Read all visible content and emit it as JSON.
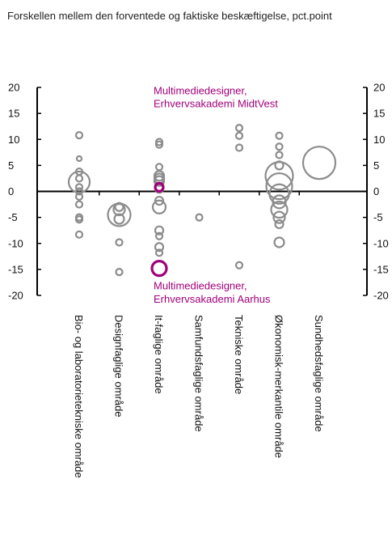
{
  "chart_data": {
    "type": "scatter",
    "title": "Forskellen mellem den forventede og faktiske beskæftigelse, pct.point",
    "ylim": [
      -20,
      20
    ],
    "yticks": [
      20,
      15,
      10,
      5,
      0,
      -5,
      -10,
      -15,
      -20
    ],
    "ytick_labels": [
      "20",
      "15",
      "10",
      "5",
      "0",
      "-5",
      "-10",
      "-15",
      "-20"
    ],
    "categories": [
      "Bio- og laboratorietekniske område",
      "Designfaglige område",
      "It-faglige område",
      "Samfundsfaglige område",
      "Tekniske område",
      "Økonomisk-merkantile område",
      "Sundhedsfaglige område"
    ],
    "grid": false,
    "colors": {
      "default": "#8c8c8c",
      "highlight": "#a0007a"
    },
    "points": [
      {
        "cat": 0,
        "y": 10.8,
        "size": 4
      },
      {
        "cat": 0,
        "y": 6.3,
        "size": 3
      },
      {
        "cat": 0,
        "y": 3.8,
        "size": 4
      },
      {
        "cat": 0,
        "y": 2.5,
        "size": 4
      },
      {
        "cat": 0,
        "y": 1.8,
        "size": 13
      },
      {
        "cat": 0,
        "y": 0.8,
        "size": 4
      },
      {
        "cat": 0,
        "y": 0.0,
        "size": 4
      },
      {
        "cat": 0,
        "y": -1.0,
        "size": 4
      },
      {
        "cat": 0,
        "y": -2.5,
        "size": 4
      },
      {
        "cat": 0,
        "y": -5.0,
        "size": 4
      },
      {
        "cat": 0,
        "y": -5.4,
        "size": 4
      },
      {
        "cat": 0,
        "y": -8.3,
        "size": 4
      },
      {
        "cat": 1,
        "y": -3.0,
        "size": 5
      },
      {
        "cat": 1,
        "y": -3.5,
        "size": 7
      },
      {
        "cat": 1,
        "y": -4.5,
        "size": 14
      },
      {
        "cat": 1,
        "y": -5.3,
        "size": 6
      },
      {
        "cat": 1,
        "y": -9.8,
        "size": 4
      },
      {
        "cat": 1,
        "y": -15.5,
        "size": 4
      },
      {
        "cat": 2,
        "y": 9.5,
        "size": 4
      },
      {
        "cat": 2,
        "y": 9.0,
        "size": 4
      },
      {
        "cat": 2,
        "y": 4.7,
        "size": 4
      },
      {
        "cat": 2,
        "y": 3.0,
        "size": 6
      },
      {
        "cat": 2,
        "y": 2.5,
        "size": 6
      },
      {
        "cat": 2,
        "y": 2.0,
        "size": 6
      },
      {
        "cat": 2,
        "y": 0.5,
        "size": 5
      },
      {
        "cat": 2,
        "y": -1.8,
        "size": 5
      },
      {
        "cat": 2,
        "y": -3.0,
        "size": 8
      },
      {
        "cat": 2,
        "y": -7.5,
        "size": 5
      },
      {
        "cat": 2,
        "y": -8.6,
        "size": 4
      },
      {
        "cat": 2,
        "y": -10.7,
        "size": 5
      },
      {
        "cat": 2,
        "y": -11.8,
        "size": 4
      },
      {
        "cat": 2,
        "y": 0.8,
        "size": 5,
        "highlight": true
      },
      {
        "cat": 2,
        "y": -14.8,
        "size": 9,
        "highlight": true
      },
      {
        "cat": 3,
        "y": -5.0,
        "size": 4
      },
      {
        "cat": 4,
        "y": 12.2,
        "size": 4
      },
      {
        "cat": 4,
        "y": 10.7,
        "size": 4
      },
      {
        "cat": 4,
        "y": 8.4,
        "size": 4
      },
      {
        "cat": 4,
        "y": -14.2,
        "size": 4
      },
      {
        "cat": 5,
        "y": 10.7,
        "size": 4
      },
      {
        "cat": 5,
        "y": 8.6,
        "size": 4
      },
      {
        "cat": 5,
        "y": 7.0,
        "size": 4
      },
      {
        "cat": 5,
        "y": 5.0,
        "size": 5
      },
      {
        "cat": 5,
        "y": 3.0,
        "size": 17
      },
      {
        "cat": 5,
        "y": 1.0,
        "size": 16
      },
      {
        "cat": 5,
        "y": -0.5,
        "size": 12
      },
      {
        "cat": 5,
        "y": -2.0,
        "size": 8
      },
      {
        "cat": 5,
        "y": -3.5,
        "size": 10
      },
      {
        "cat": 5,
        "y": -5.0,
        "size": 7
      },
      {
        "cat": 5,
        "y": -6.3,
        "size": 5
      },
      {
        "cat": 5,
        "y": -9.8,
        "size": 6
      },
      {
        "cat": 6,
        "y": 5.5,
        "size": 20
      }
    ],
    "annotations": [
      {
        "text": "Multimediedesigner,",
        "ref_cat": 2,
        "ref_y": 19.3,
        "highlight": true
      },
      {
        "text": "Erhvervsakademi MidtVest",
        "ref_cat": 2,
        "ref_y": 16.8,
        "highlight": true
      },
      {
        "text": "Multimediedesigner,",
        "ref_cat": 2,
        "ref_y": -18.2,
        "highlight": true
      },
      {
        "text": "Erhvervsakademi Aarhus",
        "ref_cat": 2,
        "ref_y": -20.8,
        "highlight": true
      }
    ]
  }
}
